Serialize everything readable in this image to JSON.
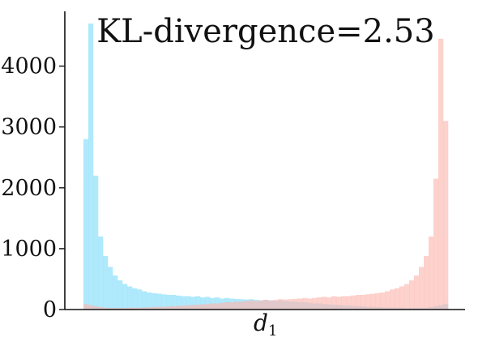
{
  "chart_data": {
    "type": "bar",
    "title": "KL-divergence=2.53",
    "xlabel_main": "d",
    "xlabel_sub": "1",
    "ylabel": "",
    "ylim": [
      0,
      4900
    ],
    "yticks": [
      0,
      1000,
      2000,
      3000,
      4000
    ],
    "ytick_labels": [
      "0",
      "1000",
      "2000",
      "3000",
      "4000"
    ],
    "grid": false,
    "legend": "none",
    "bins": 75,
    "series": [
      {
        "color": "#8fe0fb",
        "opacity": 0.7,
        "values": [
          2800,
          4700,
          2200,
          1200,
          880,
          700,
          560,
          480,
          420,
          380,
          350,
          330,
          300,
          280,
          270,
          260,
          250,
          240,
          240,
          230,
          220,
          220,
          210,
          220,
          200,
          210,
          190,
          200,
          180,
          190,
          180,
          175,
          170,
          165,
          170,
          160,
          150,
          160,
          150,
          140,
          150,
          140,
          130,
          130,
          120,
          120,
          110,
          100,
          100,
          90,
          85,
          80,
          75,
          70,
          65,
          60,
          55,
          50,
          45,
          45,
          40,
          35,
          35,
          30,
          30,
          30,
          25,
          25,
          25,
          25,
          30,
          40,
          55,
          70,
          90
        ]
      },
      {
        "color": "#fcb9b0",
        "opacity": 0.65,
        "values": [
          90,
          70,
          55,
          40,
          30,
          25,
          25,
          25,
          25,
          30,
          30,
          30,
          35,
          35,
          40,
          45,
          45,
          50,
          55,
          60,
          65,
          70,
          75,
          80,
          85,
          90,
          100,
          100,
          110,
          120,
          120,
          130,
          130,
          140,
          150,
          140,
          150,
          160,
          150,
          160,
          170,
          165,
          170,
          175,
          180,
          190,
          180,
          190,
          200,
          210,
          200,
          220,
          210,
          220,
          220,
          230,
          240,
          240,
          250,
          260,
          270,
          280,
          300,
          330,
          350,
          380,
          420,
          480,
          560,
          700,
          880,
          1200,
          2150,
          4450,
          3100
        ]
      }
    ]
  }
}
